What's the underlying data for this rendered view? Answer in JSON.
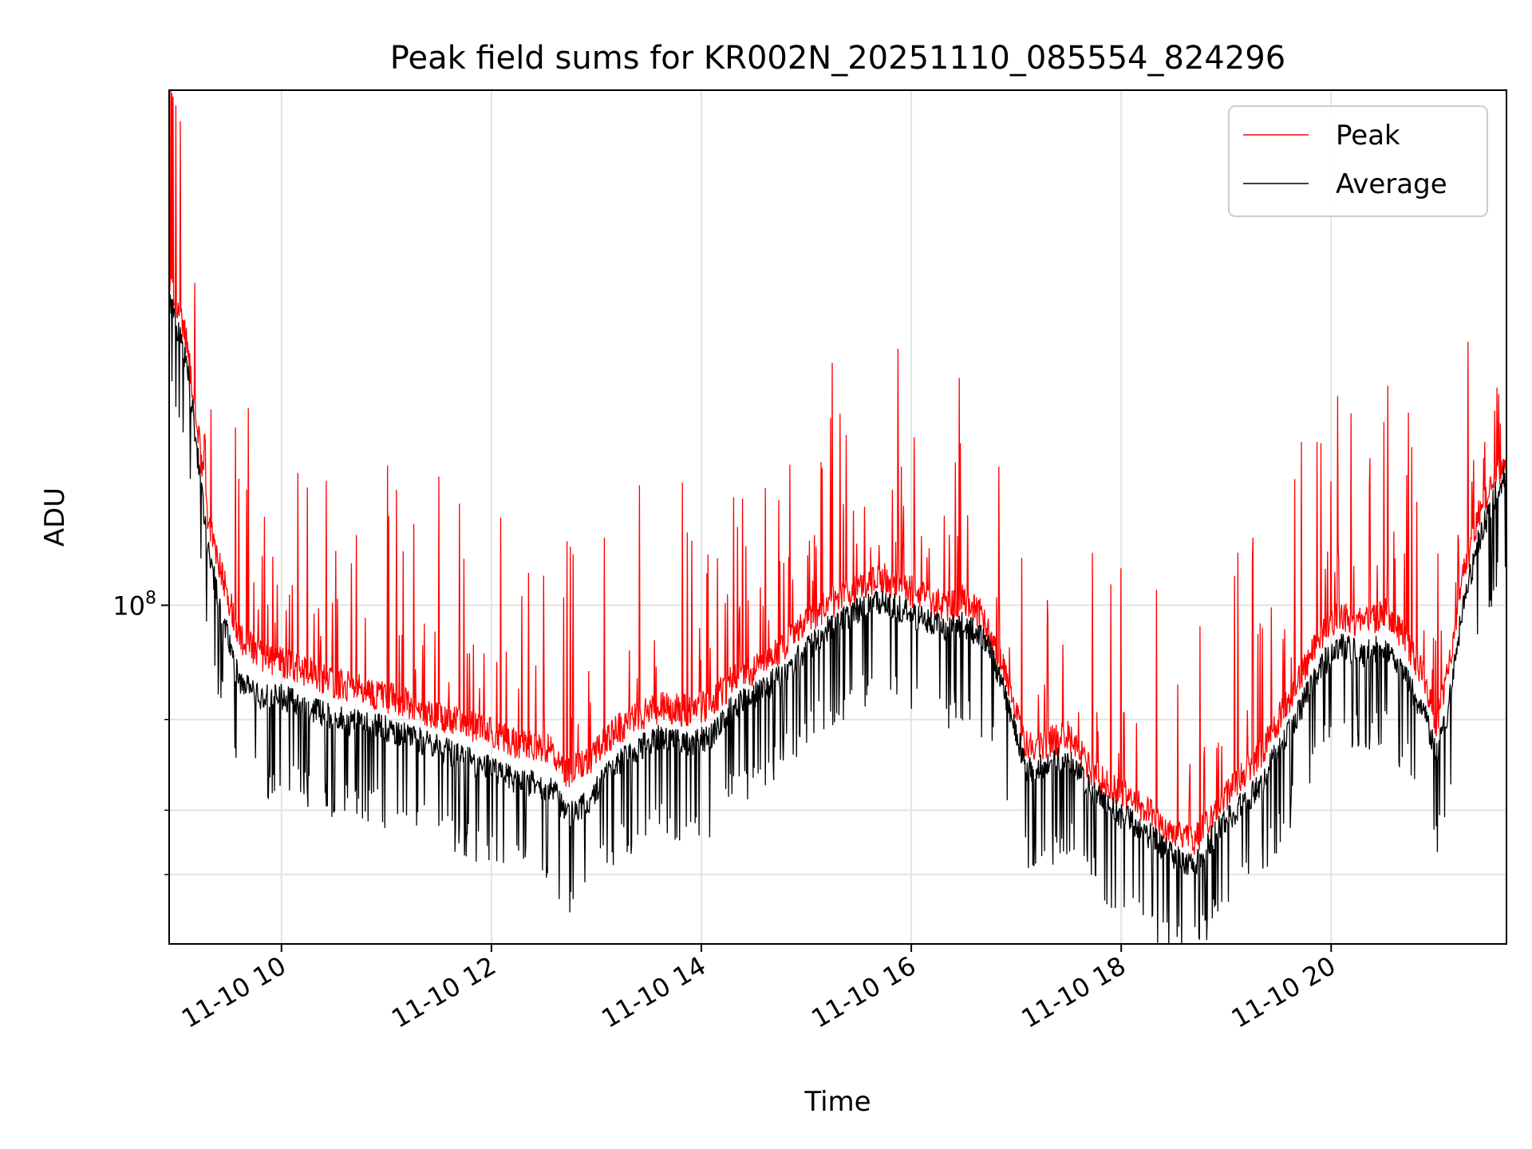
{
  "chart_data": {
    "type": "line",
    "title": "Peak field sums for KR002N_20251110_085554_824296",
    "xlabel": "Time",
    "ylabel": "ADU",
    "yscale": "log",
    "xlim_hours": [
      8.93,
      21.67
    ],
    "ylim": [
      22000000,
      1000000000
    ],
    "x_ticks": [
      {
        "hour": 10,
        "label": "11-10 10"
      },
      {
        "hour": 12,
        "label": "11-10 12"
      },
      {
        "hour": 14,
        "label": "11-10 14"
      },
      {
        "hour": 16,
        "label": "11-10 16"
      },
      {
        "hour": 18,
        "label": "11-10 18"
      },
      {
        "hour": 20,
        "label": "11-10 20"
      }
    ],
    "y_major_ticks": [
      {
        "value": 100000000,
        "base": "10",
        "exp": "8"
      }
    ],
    "y_minor_ticks": [
      30000000,
      40000000,
      60000000
    ],
    "grid": true,
    "legend_position": "upper right",
    "series": [
      {
        "name": "Average",
        "color": "#000000",
        "hours": [
          8.93,
          9.0,
          9.1,
          9.2,
          9.3,
          9.45,
          9.6,
          9.8,
          10.0,
          10.3,
          10.6,
          11.0,
          11.4,
          11.8,
          12.2,
          12.6,
          12.7,
          12.9,
          13.1,
          13.3,
          13.6,
          13.9,
          14.1,
          14.3,
          14.6,
          14.9,
          15.2,
          15.5,
          15.75,
          16.0,
          16.3,
          16.5,
          16.7,
          16.9,
          17.1,
          17.3,
          17.5,
          17.7,
          17.9,
          18.1,
          18.3,
          18.5,
          18.7,
          18.9,
          19.1,
          19.3,
          19.5,
          19.7,
          19.9,
          20.1,
          20.3,
          20.5,
          20.7,
          20.9,
          21.0,
          21.1,
          21.25,
          21.4,
          21.55,
          21.67
        ],
        "values": [
          400000000,
          360000000,
          300000000,
          200000000,
          130000000,
          95000000,
          72000000,
          68000000,
          68000000,
          64000000,
          61000000,
          59000000,
          55000000,
          51000000,
          47000000,
          45000000,
          40000000,
          42000000,
          48000000,
          52000000,
          57000000,
          55000000,
          57000000,
          65000000,
          70000000,
          80000000,
          92000000,
          100000000,
          104000000,
          98000000,
          92000000,
          94000000,
          88000000,
          68000000,
          49000000,
          50000000,
          52000000,
          45000000,
          41000000,
          39000000,
          36000000,
          33000000,
          32000000,
          37000000,
          41000000,
          45000000,
          54000000,
          64000000,
          78000000,
          85000000,
          82000000,
          85000000,
          75000000,
          62000000,
          52000000,
          62000000,
          100000000,
          135000000,
          165000000,
          185000000
        ]
      },
      {
        "name": "Peak",
        "color": "#ff0000",
        "hours": [
          8.93,
          9.0,
          9.1,
          9.2,
          9.3,
          9.45,
          9.6,
          9.8,
          10.0,
          10.3,
          10.6,
          11.0,
          11.4,
          11.8,
          12.2,
          12.6,
          12.7,
          12.9,
          13.1,
          13.3,
          13.6,
          13.9,
          14.1,
          14.3,
          14.6,
          14.9,
          15.2,
          15.5,
          15.75,
          16.0,
          16.3,
          16.5,
          16.7,
          16.9,
          17.1,
          17.3,
          17.5,
          17.7,
          17.9,
          18.1,
          18.3,
          18.5,
          18.7,
          18.9,
          19.1,
          19.3,
          19.5,
          19.7,
          19.9,
          20.1,
          20.3,
          20.5,
          20.7,
          20.9,
          21.0,
          21.1,
          21.25,
          21.4,
          21.55,
          21.67
        ],
        "values": [
          410000000,
          370000000,
          315000000,
          215000000,
          145000000,
          110000000,
          85000000,
          78000000,
          76000000,
          72000000,
          68000000,
          65000000,
          61000000,
          57000000,
          53000000,
          51000000,
          46000000,
          48000000,
          54000000,
          58000000,
          62000000,
          61000000,
          63000000,
          70000000,
          75000000,
          86000000,
          98000000,
          106000000,
          110000000,
          104000000,
          97000000,
          100000000,
          92000000,
          71000000,
          52000000,
          53000000,
          55000000,
          47000000,
          43000000,
          41000000,
          38000000,
          35000000,
          34000000,
          39000000,
          44000000,
          49000000,
          59000000,
          70000000,
          86000000,
          94000000,
          90000000,
          95000000,
          85000000,
          70000000,
          58000000,
          70000000,
          110000000,
          145000000,
          170000000,
          190000000
        ]
      }
    ]
  }
}
